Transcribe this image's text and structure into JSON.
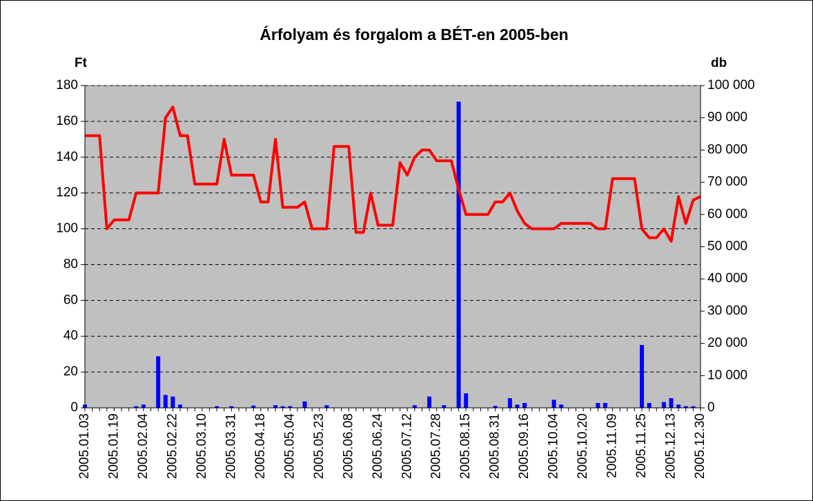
{
  "chart_data": {
    "type": "combo",
    "title": "Árfolyam és forgalom a BÉT-en 2005-ben",
    "y_label": "Ft",
    "y2_label": "db",
    "categories": [
      "2005.01.03",
      null,
      null,
      null,
      "2005.01.19",
      null,
      null,
      null,
      "2005.02.04",
      null,
      null,
      null,
      "2005.02.22",
      null,
      null,
      null,
      "2005.03.10",
      null,
      null,
      null,
      "2005.03.31",
      null,
      null,
      null,
      "2005.04.18",
      null,
      null,
      null,
      "2005.05.04",
      null,
      null,
      null,
      "2005.05.23",
      null,
      null,
      null,
      "2005.06.08",
      null,
      null,
      null,
      "2005.06.24",
      null,
      null,
      null,
      "2005.07.12",
      null,
      null,
      null,
      "2005.07.28",
      null,
      null,
      null,
      "2005.08.15",
      null,
      null,
      null,
      "2005.08.31",
      null,
      null,
      null,
      "2005.09.16",
      null,
      null,
      null,
      "2005.10.04",
      null,
      null,
      null,
      "2005.10.20",
      null,
      null,
      null,
      "2005.11.09",
      null,
      null,
      null,
      "2005.11.25",
      null,
      null,
      null,
      "2005.12.13",
      null,
      null,
      null,
      "2005.12.30"
    ],
    "series": [
      {
        "type": "bar",
        "axis": "y2",
        "color": "#0000ff",
        "values": [
          1000,
          0,
          0,
          0,
          0,
          0,
          0,
          500,
          1000,
          0,
          16000,
          4000,
          3500,
          1000,
          0,
          0,
          0,
          0,
          500,
          0,
          500,
          0,
          0,
          700,
          0,
          0,
          800,
          500,
          500,
          0,
          2000,
          0,
          0,
          800,
          0,
          0,
          0,
          0,
          0,
          0,
          0,
          0,
          0,
          0,
          0,
          800,
          0,
          3500,
          0,
          800,
          0,
          95000,
          4500,
          0,
          0,
          0,
          600,
          0,
          3000,
          1000,
          1500,
          0,
          0,
          0,
          2500,
          1000,
          0,
          0,
          0,
          0,
          1500,
          1500,
          0,
          0,
          0,
          0,
          19500,
          1500,
          0,
          1800,
          3000,
          1000,
          500,
          500,
          0
        ]
      },
      {
        "type": "line",
        "color": "#ff0000",
        "values": [
          152,
          152,
          152,
          100,
          105,
          105,
          105,
          120,
          120,
          120,
          120,
          162,
          168,
          152,
          152,
          125,
          125,
          125,
          125,
          150,
          130,
          130,
          130,
          130,
          115,
          115,
          150,
          112,
          112,
          112,
          115,
          100,
          100,
          100,
          146,
          146,
          146,
          98,
          98,
          120,
          102,
          102,
          102,
          137,
          130,
          140,
          144,
          144,
          138,
          138,
          138,
          122,
          108,
          108,
          108,
          108,
          115,
          115,
          120,
          110,
          103,
          100,
          100,
          100,
          100,
          103,
          103,
          103,
          103,
          103,
          100,
          100,
          128,
          128,
          128,
          128,
          100,
          95,
          95,
          100,
          93,
          118,
          103,
          116,
          118
        ]
      }
    ],
    "ylim": [
      0,
      180
    ],
    "yticks": [
      0,
      20,
      40,
      60,
      80,
      100,
      120,
      140,
      160,
      180
    ],
    "y2lim": [
      0,
      100000
    ],
    "y2ticks": [
      0,
      {
        "value": 10000,
        "label": "10 000"
      },
      {
        "value": 20000,
        "label": "20 000"
      },
      {
        "value": 30000,
        "label": "30 000"
      },
      {
        "value": 40000,
        "label": "40 000"
      },
      {
        "value": 50000,
        "label": "50 000"
      },
      {
        "value": 60000,
        "label": "60 000"
      },
      {
        "value": 70000,
        "label": "70 000"
      },
      {
        "value": 80000,
        "label": "80 000"
      },
      {
        "value": 90000,
        "label": "90 000"
      },
      {
        "value": 100000,
        "label": "100 000"
      }
    ],
    "grid": true,
    "plot_background": "#c0c0c0"
  }
}
